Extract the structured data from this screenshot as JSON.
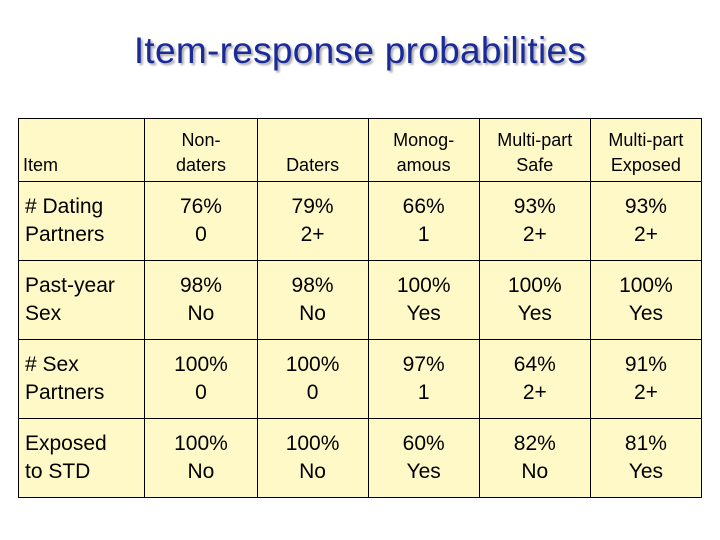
{
  "title": "Item-response probabilities",
  "table": {
    "headers": [
      [
        "Item"
      ],
      [
        "Non-",
        "daters"
      ],
      [
        "Daters"
      ],
      [
        "Monog-",
        "amous"
      ],
      [
        "Multi-part",
        "Safe"
      ],
      [
        "Multi-part",
        "Exposed"
      ]
    ],
    "rows": [
      {
        "label": [
          "# Dating",
          "Partners"
        ],
        "cells": [
          [
            "76%",
            "0"
          ],
          [
            "79%",
            "2+"
          ],
          [
            "66%",
            "1"
          ],
          [
            "93%",
            "2+"
          ],
          [
            "93%",
            "2+"
          ]
        ]
      },
      {
        "label": [
          "Past-year",
          "Sex"
        ],
        "cells": [
          [
            "98%",
            "No"
          ],
          [
            "98%",
            "No"
          ],
          [
            "100%",
            "Yes"
          ],
          [
            "100%",
            "Yes"
          ],
          [
            "100%",
            "Yes"
          ]
        ]
      },
      {
        "label": [
          "# Sex",
          "Partners"
        ],
        "cells": [
          [
            "100%",
            "0"
          ],
          [
            "100%",
            "0"
          ],
          [
            "97%",
            "1"
          ],
          [
            "64%",
            "2+"
          ],
          [
            "91%",
            "2+"
          ]
        ]
      },
      {
        "label": [
          "Exposed",
          "to STD"
        ],
        "cells": [
          [
            "100%",
            "No"
          ],
          [
            "100%",
            "No"
          ],
          [
            "60%",
            "Yes"
          ],
          [
            "82%",
            "No"
          ],
          [
            "81%",
            "Yes"
          ]
        ]
      }
    ]
  }
}
